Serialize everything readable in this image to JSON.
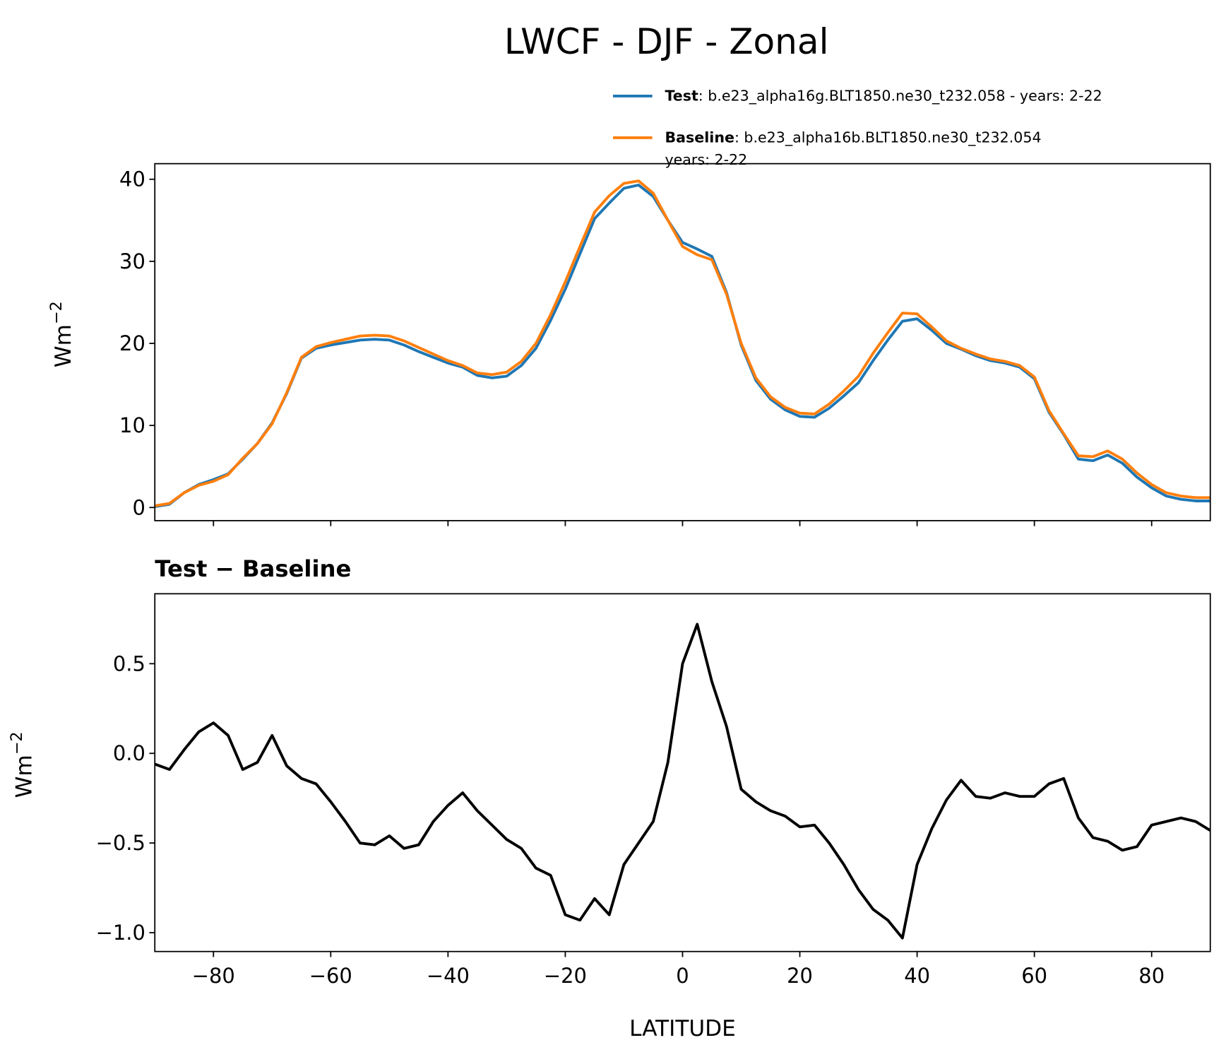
{
  "title": "LWCF - DJF - Zonal",
  "chart_data": [
    {
      "type": "line",
      "ylabel": "Wm",
      "ylabel_exponent": "−2",
      "legend": "upper right",
      "x": [
        -90,
        -87.5,
        -85,
        -82.5,
        -80,
        -77.5,
        -75,
        -72.5,
        -70,
        -67.5,
        -65,
        -62.5,
        -60,
        -57.5,
        -55,
        -52.5,
        -50,
        -47.5,
        -45,
        -42.5,
        -40,
        -37.5,
        -35,
        -32.5,
        -30,
        -27.5,
        -25,
        -22.5,
        -20,
        -17.5,
        -15,
        -12.5,
        -10,
        -7.5,
        -5,
        -2.5,
        0,
        2.5,
        5,
        7.5,
        10,
        12.5,
        15,
        17.5,
        20,
        22.5,
        25,
        27.5,
        30,
        32.5,
        35,
        37.5,
        40,
        42.5,
        45,
        47.5,
        50,
        52.5,
        55,
        57.5,
        60,
        62.5,
        65,
        67.5,
        70,
        72.5,
        75,
        77.5,
        80,
        82.5,
        85,
        87.5,
        90
      ],
      "series": [
        {
          "name": "Test",
          "detail": [
            ": b.e23_alpha16g.BLT1850.ne30_t232.058 - years: 2-22"
          ],
          "color": "#1f77b4",
          "values": [
            0.1,
            0.4,
            1.8,
            2.8,
            3.4,
            4.1,
            5.9,
            7.8,
            10.3,
            13.9,
            18.2,
            19.4,
            19.8,
            20.1,
            20.4,
            20.5,
            20.4,
            19.8,
            19.0,
            18.3,
            17.6,
            17.1,
            16.1,
            15.8,
            16.0,
            17.3,
            19.4,
            22.8,
            26.6,
            30.9,
            35.2,
            37.1,
            38.9,
            39.3,
            37.9,
            35.0,
            32.3,
            31.5,
            30.6,
            26.2,
            19.8,
            15.5,
            13.2,
            11.9,
            11.1,
            11.0,
            12.1,
            13.6,
            15.2,
            17.9,
            20.4,
            22.7,
            23.0,
            21.6,
            20.0,
            19.3,
            18.5,
            17.9,
            17.6,
            17.1,
            15.7,
            11.6,
            8.9,
            5.9,
            5.7,
            6.4,
            5.4,
            3.7,
            2.4,
            1.4,
            1.0,
            0.8,
            0.8
          ]
        },
        {
          "name": "Baseline",
          "detail": [
            ": b.e23_alpha16b.BLT1850.ne30_t232.054",
            "years: 2-22"
          ],
          "color": "#ff7f0e",
          "values": [
            0.2,
            0.5,
            1.8,
            2.7,
            3.2,
            4.0,
            6.0,
            7.8,
            10.2,
            14.0,
            18.3,
            19.6,
            20.1,
            20.5,
            20.9,
            21.0,
            20.9,
            20.3,
            19.5,
            18.7,
            17.9,
            17.3,
            16.4,
            16.2,
            16.5,
            17.8,
            20.0,
            23.5,
            27.5,
            31.8,
            36.0,
            38.0,
            39.5,
            39.8,
            38.3,
            35.0,
            31.8,
            30.8,
            30.2,
            26.0,
            20.0,
            15.8,
            13.5,
            12.2,
            11.5,
            11.4,
            12.6,
            14.2,
            16.0,
            18.8,
            21.3,
            23.7,
            23.6,
            22.0,
            20.3,
            19.4,
            18.7,
            18.1,
            17.8,
            17.3,
            15.9,
            11.8,
            9.0,
            6.3,
            6.2,
            6.9,
            5.9,
            4.2,
            2.8,
            1.8,
            1.4,
            1.2,
            1.2
          ]
        }
      ],
      "xlim": [
        -90,
        90
      ],
      "xticks": [
        -80,
        -60,
        -40,
        -20,
        0,
        20,
        40,
        60,
        80
      ],
      "ylim": [
        -1.6,
        41.9
      ],
      "yticks": [
        0,
        10,
        20,
        30,
        40
      ]
    },
    {
      "type": "line",
      "title": "Test − Baseline",
      "ylabel": "Wm",
      "ylabel_exponent": "−2",
      "xlabel": "LATITUDE",
      "x": [
        -90,
        -87.5,
        -85,
        -82.5,
        -80,
        -77.5,
        -75,
        -72.5,
        -70,
        -67.5,
        -65,
        -62.5,
        -60,
        -57.5,
        -55,
        -52.5,
        -50,
        -47.5,
        -45,
        -42.5,
        -40,
        -37.5,
        -35,
        -32.5,
        -30,
        -27.5,
        -25,
        -22.5,
        -20,
        -17.5,
        -15,
        -12.5,
        -10,
        -7.5,
        -5,
        -2.5,
        0,
        2.5,
        5,
        7.5,
        10,
        12.5,
        15,
        17.5,
        20,
        22.5,
        25,
        27.5,
        30,
        32.5,
        35,
        37.5,
        40,
        42.5,
        45,
        47.5,
        50,
        52.5,
        55,
        57.5,
        60,
        62.5,
        65,
        67.5,
        70,
        72.5,
        75,
        77.5,
        80,
        82.5,
        85,
        87.5,
        90
      ],
      "series": [
        {
          "color": "#000000",
          "values": [
            -0.06,
            -0.09,
            0.02,
            0.12,
            0.17,
            0.1,
            -0.09,
            -0.05,
            0.1,
            -0.07,
            -0.14,
            -0.17,
            -0.27,
            -0.38,
            -0.5,
            -0.51,
            -0.46,
            -0.53,
            -0.51,
            -0.38,
            -0.29,
            -0.22,
            -0.32,
            -0.4,
            -0.48,
            -0.53,
            -0.64,
            -0.68,
            -0.9,
            -0.93,
            -0.81,
            -0.9,
            -0.62,
            -0.5,
            -0.38,
            -0.05,
            0.5,
            0.72,
            0.4,
            0.15,
            -0.2,
            -0.27,
            -0.32,
            -0.35,
            -0.41,
            -0.4,
            -0.5,
            -0.62,
            -0.76,
            -0.87,
            -0.93,
            -1.03,
            -0.62,
            -0.42,
            -0.26,
            -0.15,
            -0.24,
            -0.25,
            -0.22,
            -0.24,
            -0.24,
            -0.17,
            -0.14,
            -0.36,
            -0.47,
            -0.49,
            -0.54,
            -0.52,
            -0.4,
            -0.38,
            -0.36,
            -0.38,
            -0.43
          ]
        }
      ],
      "xlim": [
        -90,
        90
      ],
      "xticks": [
        {
          "value": -80,
          "label": "−80"
        },
        {
          "value": -60,
          "label": "−60"
        },
        {
          "value": -40,
          "label": "−40"
        },
        {
          "value": -20,
          "label": "−20"
        },
        0,
        20,
        40,
        60,
        80
      ],
      "ylim": [
        -1.105,
        0.89
      ],
      "yticks": [
        {
          "value": -1,
          "label": "−1.0"
        },
        {
          "value": -0.5,
          "label": "−0.5"
        },
        {
          "value": 0,
          "label": "0.0"
        },
        0.5
      ]
    }
  ]
}
